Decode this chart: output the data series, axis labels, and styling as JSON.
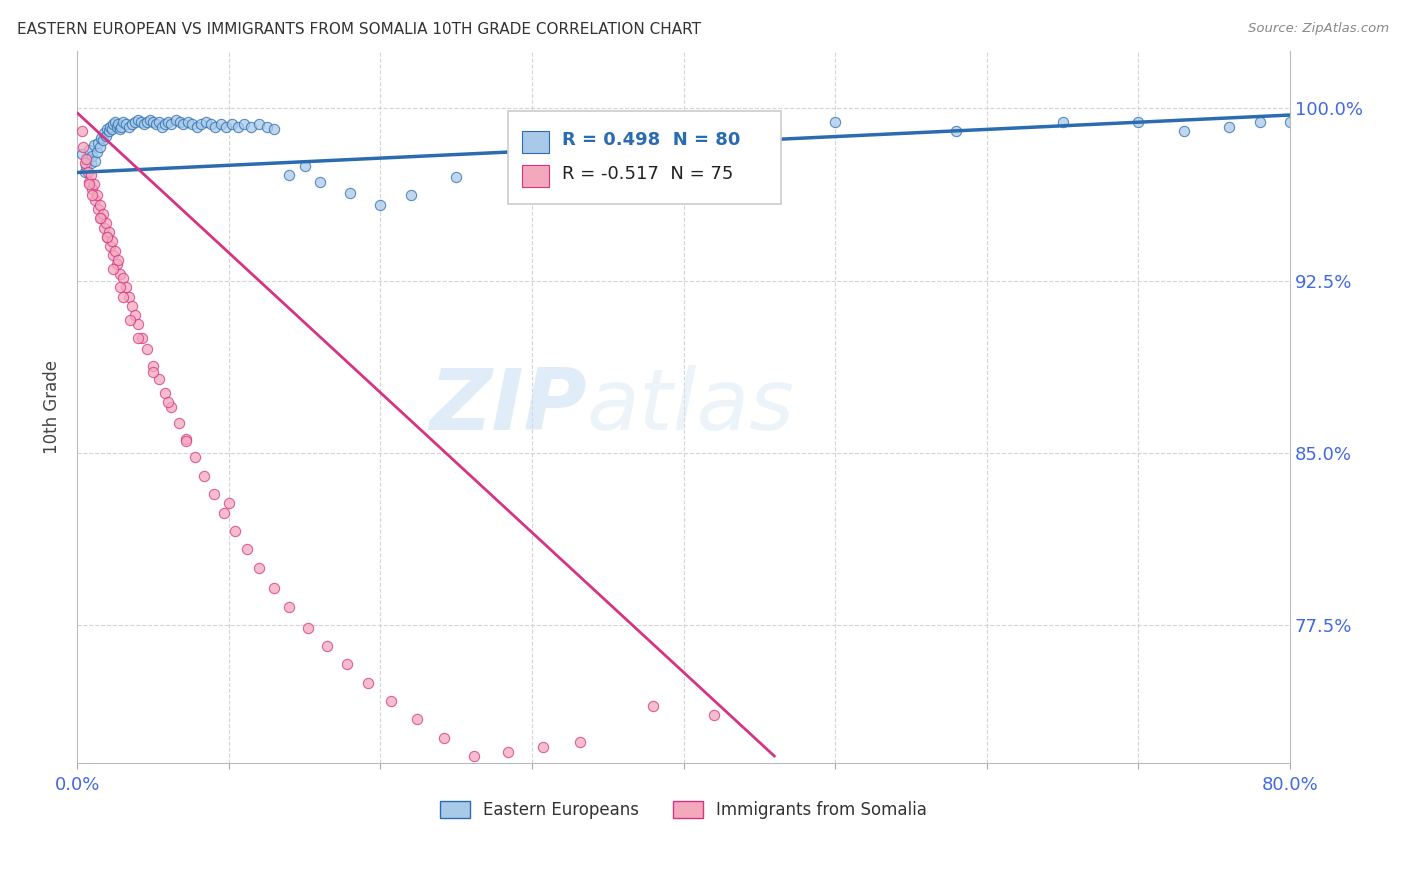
{
  "title": "EASTERN EUROPEAN VS IMMIGRANTS FROM SOMALIA 10TH GRADE CORRELATION CHART",
  "source": "Source: ZipAtlas.com",
  "ylabel": "10th Grade",
  "right_ytick_vals": [
    1.0,
    0.925,
    0.85,
    0.775
  ],
  "right_ytick_labels": [
    "100.0%",
    "92.5%",
    "85.0%",
    "77.5%"
  ],
  "xlim": [
    0.0,
    0.8
  ],
  "ylim": [
    0.715,
    1.025
  ],
  "legend_label_blue": "Eastern Europeans",
  "legend_label_pink": "Immigrants from Somalia",
  "blue_color": "#a8caE8",
  "pink_color": "#f4a8bc",
  "trend_blue_color": "#2b6cb0",
  "trend_pink_color": "#d63384",
  "watermark_zip": "ZIP",
  "watermark_atlas": "atlas",
  "background_color": "#ffffff",
  "grid_color": "#d0d0d0",
  "axis_label_color": "#4169e1",
  "title_color": "#333333",
  "blue_scatter_x": [
    0.003,
    0.005,
    0.006,
    0.007,
    0.008,
    0.009,
    0.01,
    0.011,
    0.012,
    0.013,
    0.014,
    0.015,
    0.016,
    0.017,
    0.018,
    0.019,
    0.02,
    0.021,
    0.022,
    0.023,
    0.024,
    0.025,
    0.026,
    0.027,
    0.028,
    0.029,
    0.03,
    0.032,
    0.034,
    0.036,
    0.038,
    0.04,
    0.042,
    0.044,
    0.046,
    0.048,
    0.05,
    0.052,
    0.054,
    0.056,
    0.058,
    0.06,
    0.062,
    0.065,
    0.068,
    0.07,
    0.073,
    0.076,
    0.079,
    0.082,
    0.085,
    0.088,
    0.091,
    0.095,
    0.098,
    0.102,
    0.106,
    0.11,
    0.115,
    0.12,
    0.125,
    0.13,
    0.14,
    0.15,
    0.16,
    0.18,
    0.2,
    0.22,
    0.25,
    0.3,
    0.35,
    0.4,
    0.5,
    0.58,
    0.65,
    0.7,
    0.73,
    0.76,
    0.78,
    0.8
  ],
  "blue_scatter_y": [
    0.98,
    0.972,
    0.975,
    0.978,
    0.982,
    0.976,
    0.979,
    0.984,
    0.977,
    0.981,
    0.985,
    0.983,
    0.987,
    0.986,
    0.989,
    0.988,
    0.991,
    0.99,
    0.992,
    0.991,
    0.993,
    0.994,
    0.992,
    0.993,
    0.991,
    0.992,
    0.994,
    0.993,
    0.992,
    0.993,
    0.994,
    0.995,
    0.994,
    0.993,
    0.994,
    0.995,
    0.994,
    0.993,
    0.994,
    0.992,
    0.993,
    0.994,
    0.993,
    0.995,
    0.994,
    0.993,
    0.994,
    0.993,
    0.992,
    0.993,
    0.994,
    0.993,
    0.992,
    0.993,
    0.992,
    0.993,
    0.992,
    0.993,
    0.992,
    0.993,
    0.992,
    0.991,
    0.971,
    0.975,
    0.968,
    0.963,
    0.958,
    0.962,
    0.97,
    0.975,
    0.975,
    0.99,
    0.994,
    0.99,
    0.994,
    0.994,
    0.99,
    0.992,
    0.994,
    0.994
  ],
  "pink_scatter_x": [
    0.003,
    0.004,
    0.005,
    0.006,
    0.007,
    0.008,
    0.009,
    0.01,
    0.011,
    0.012,
    0.013,
    0.014,
    0.015,
    0.016,
    0.017,
    0.018,
    0.019,
    0.02,
    0.021,
    0.022,
    0.023,
    0.024,
    0.025,
    0.026,
    0.027,
    0.028,
    0.03,
    0.032,
    0.034,
    0.036,
    0.038,
    0.04,
    0.043,
    0.046,
    0.05,
    0.054,
    0.058,
    0.062,
    0.067,
    0.072,
    0.078,
    0.084,
    0.09,
    0.097,
    0.104,
    0.112,
    0.12,
    0.13,
    0.14,
    0.152,
    0.165,
    0.178,
    0.192,
    0.207,
    0.224,
    0.242,
    0.262,
    0.284,
    0.307,
    0.332,
    0.024,
    0.05,
    0.072,
    0.028,
    0.04,
    0.015,
    0.03,
    0.01,
    0.02,
    0.06,
    0.008,
    0.035,
    0.1,
    0.38,
    0.42
  ],
  "pink_scatter_y": [
    0.99,
    0.983,
    0.976,
    0.978,
    0.972,
    0.968,
    0.971,
    0.965,
    0.967,
    0.96,
    0.962,
    0.956,
    0.958,
    0.952,
    0.954,
    0.948,
    0.95,
    0.944,
    0.946,
    0.94,
    0.942,
    0.936,
    0.938,
    0.932,
    0.934,
    0.928,
    0.926,
    0.922,
    0.918,
    0.914,
    0.91,
    0.906,
    0.9,
    0.895,
    0.888,
    0.882,
    0.876,
    0.87,
    0.863,
    0.856,
    0.848,
    0.84,
    0.832,
    0.824,
    0.816,
    0.808,
    0.8,
    0.791,
    0.783,
    0.774,
    0.766,
    0.758,
    0.75,
    0.742,
    0.734,
    0.726,
    0.718,
    0.72,
    0.722,
    0.724,
    0.93,
    0.885,
    0.855,
    0.922,
    0.9,
    0.952,
    0.918,
    0.962,
    0.944,
    0.872,
    0.967,
    0.908,
    0.828,
    0.74,
    0.736
  ],
  "blue_trend_x": [
    0.0,
    0.8
  ],
  "blue_trend_y": [
    0.972,
    0.997
  ],
  "pink_trend_x": [
    0.0,
    0.46
  ],
  "pink_trend_y": [
    0.998,
    0.718
  ]
}
